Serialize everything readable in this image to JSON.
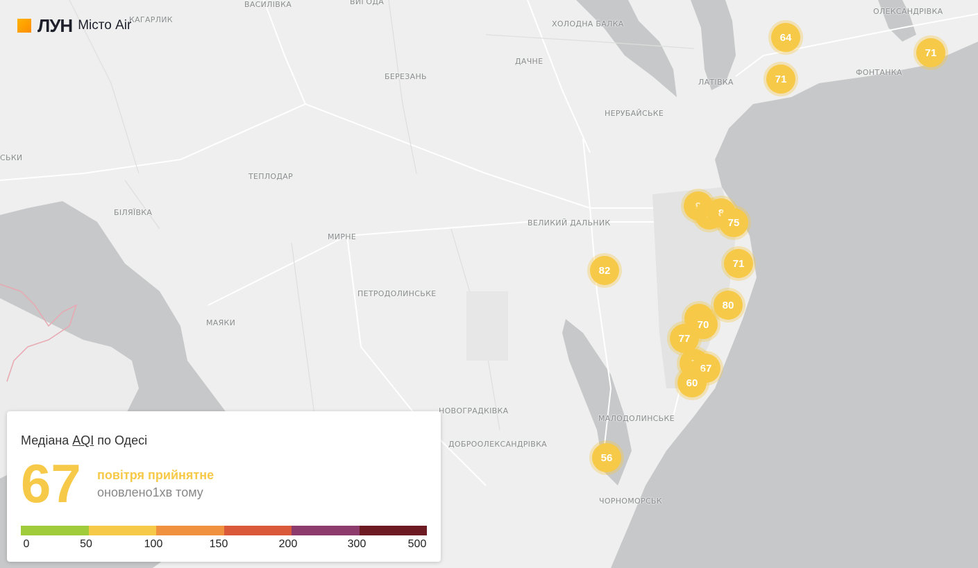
{
  "logo": {
    "brand": "ЛУН",
    "subtitle": "Місто Air"
  },
  "places": [
    {
      "name": "ВАСИЛІВКА",
      "id": "vasylivka"
    },
    {
      "name": "ВИГОДА",
      "id": "vyhoda"
    },
    {
      "name": "КАГАРЛИК",
      "id": "kaharlyk"
    },
    {
      "name": "ХОЛОДНА БАЛКА",
      "id": "kholodna-balka"
    },
    {
      "name": "ОЛЕКСАНДРІВКА",
      "id": "oleksandrivka"
    },
    {
      "name": "ДАЧНЕ",
      "id": "dachne"
    },
    {
      "name": "БЕРЕЗАНЬ",
      "id": "berezan"
    },
    {
      "name": "ЛАТІВКА",
      "id": "lativka"
    },
    {
      "name": "ФОНТАНКА",
      "id": "fontanka"
    },
    {
      "name": "НЕРУБАЙСЬКЕ",
      "id": "nerubaiske"
    },
    {
      "name": "СЬКИ",
      "id": "sky"
    },
    {
      "name": "ТЕПЛОДАР",
      "id": "teplodar"
    },
    {
      "name": "БІЛЯЇВКА",
      "id": "biliaivka"
    },
    {
      "name": "ВЕЛИКИЙ ДАЛЬНИК",
      "id": "velykyi-dalnyk"
    },
    {
      "name": "МИРНЕ",
      "id": "myrne"
    },
    {
      "name": "ПЕТРОДОЛИНСЬКЕ",
      "id": "petrodolynske"
    },
    {
      "name": "МАЯКИ",
      "id": "maiaky"
    },
    {
      "name": "НОВОГРАДКІВКА",
      "id": "novohradkivka"
    },
    {
      "name": "МАЛОДОЛИНСЬКЕ",
      "id": "malodolynske"
    },
    {
      "name": "ДОБРООЛЕКСАНДРІВКА",
      "id": "dobrooleksandrivka"
    },
    {
      "name": "ЧОРНОМОРСЬК",
      "id": "chornomorsk"
    }
  ],
  "markers": [
    "64",
    "71",
    "71",
    "9",
    "5",
    "8",
    "75",
    "82",
    "71",
    "80",
    "7",
    "70",
    "77",
    "7",
    "67",
    "60",
    "56"
  ],
  "panel": {
    "title_prefix": "Медіана ",
    "title_aqi": "AQI",
    "title_suffix": " по Одесі",
    "value": "67",
    "status": "повітря прийнятне",
    "updated": "оновлено1хв тому"
  },
  "scale": {
    "colors": [
      "#a0cc3c",
      "#f7c948",
      "#f0913f",
      "#d9593a",
      "#8d3a6c",
      "#6e1a22"
    ],
    "ticks": [
      "0",
      "50",
      "100",
      "150",
      "200",
      "300",
      "500"
    ]
  },
  "colors": {
    "aqi_moderate": "#f7c948",
    "water": "#c7c8c9",
    "land": "#eeefee"
  }
}
